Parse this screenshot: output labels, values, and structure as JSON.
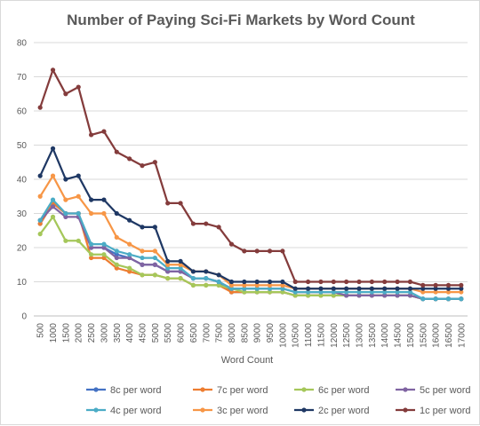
{
  "chart_data": {
    "type": "line",
    "title": "Number of Paying Sci-Fi Markets by Word Count",
    "xlabel": "Word Count",
    "ylabel": "",
    "ylim": [
      0,
      80
    ],
    "yticks": [
      "0",
      "10",
      "20",
      "30",
      "40",
      "50",
      "60",
      "70",
      "80"
    ],
    "grid": true,
    "legend_position": "bottom",
    "categories": [
      "500",
      "1000",
      "1500",
      "2000",
      "2500",
      "3000",
      "3500",
      "4000",
      "4500",
      "5000",
      "5500",
      "6000",
      "6500",
      "7000",
      "7500",
      "8000",
      "8500",
      "9000",
      "9500",
      "10000",
      "10500",
      "11000",
      "11500",
      "12000",
      "12500",
      "13000",
      "13500",
      "14000",
      "14500",
      "15000",
      "15500",
      "16000",
      "16500",
      "17000"
    ],
    "series": [
      {
        "name": "8c per word",
        "color": "#4472C4",
        "values": [
          27,
          33,
          30,
          30,
          20,
          20,
          18,
          17,
          15,
          15,
          13,
          13,
          11,
          11,
          10,
          7,
          7,
          7,
          7,
          7,
          6,
          6,
          6,
          6,
          6,
          6,
          6,
          6,
          6,
          6,
          5,
          5,
          5,
          5
        ]
      },
      {
        "name": "7c per word",
        "color": "#ED7D31",
        "values": [
          27,
          33,
          30,
          30,
          17,
          17,
          14,
          13,
          12,
          12,
          11,
          11,
          9,
          9,
          9,
          7,
          7,
          7,
          7,
          7,
          6,
          6,
          6,
          6,
          6,
          6,
          6,
          6,
          6,
          6,
          5,
          5,
          5,
          5
        ]
      },
      {
        "name": "6c per word",
        "color": "#A5C75A",
        "values": [
          24,
          29,
          22,
          22,
          18,
          18,
          15,
          14,
          12,
          12,
          11,
          11,
          9,
          9,
          9,
          8,
          7,
          7,
          7,
          7,
          6,
          6,
          6,
          6,
          6,
          6,
          6,
          6,
          6,
          6,
          5,
          5,
          5,
          5
        ]
      },
      {
        "name": "5c per word",
        "color": "#8064A2",
        "values": [
          28,
          32,
          29,
          29,
          20,
          20,
          17,
          17,
          15,
          15,
          13,
          13,
          11,
          11,
          10,
          8,
          8,
          8,
          8,
          8,
          7,
          7,
          7,
          7,
          6,
          6,
          6,
          6,
          6,
          6,
          5,
          5,
          5,
          5
        ]
      },
      {
        "name": "4c per word",
        "color": "#4BACC6",
        "values": [
          28,
          34,
          30,
          30,
          21,
          21,
          19,
          18,
          17,
          17,
          14,
          14,
          11,
          11,
          10,
          8,
          8,
          8,
          8,
          8,
          7,
          7,
          7,
          7,
          7,
          7,
          7,
          7,
          7,
          7,
          5,
          5,
          5,
          5
        ]
      },
      {
        "name": "3c per word",
        "color": "#F79646",
        "values": [
          35,
          41,
          34,
          35,
          30,
          30,
          23,
          21,
          19,
          19,
          15,
          15,
          13,
          13,
          12,
          9,
          9,
          9,
          9,
          9,
          8,
          8,
          8,
          8,
          8,
          8,
          8,
          8,
          8,
          8,
          7,
          7,
          7,
          7
        ]
      },
      {
        "name": "2c per word",
        "color": "#1F3864",
        "values": [
          41,
          49,
          40,
          41,
          34,
          34,
          30,
          28,
          26,
          26,
          16,
          16,
          13,
          13,
          12,
          10,
          10,
          10,
          10,
          10,
          8,
          8,
          8,
          8,
          8,
          8,
          8,
          8,
          8,
          8,
          8,
          8,
          8,
          8
        ]
      },
      {
        "name": "1c per word",
        "color": "#843C3C",
        "values": [
          61,
          72,
          65,
          67,
          53,
          54,
          48,
          46,
          44,
          45,
          33,
          33,
          27,
          27,
          26,
          21,
          19,
          19,
          19,
          19,
          10,
          10,
          10,
          10,
          10,
          10,
          10,
          10,
          10,
          10,
          9,
          9,
          9,
          9
        ]
      }
    ]
  }
}
